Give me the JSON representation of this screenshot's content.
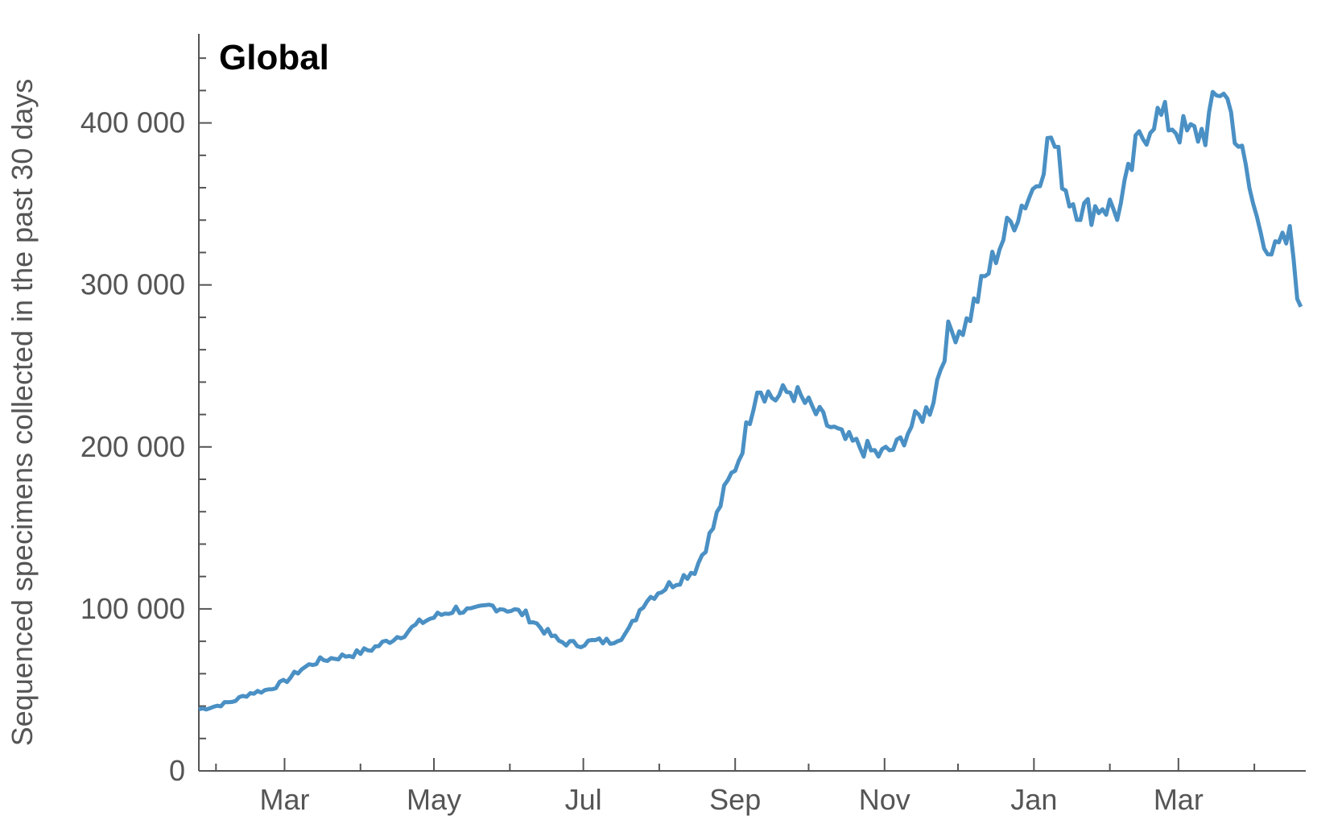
{
  "chart_data": {
    "type": "line",
    "title": "Global",
    "xlabel": "",
    "ylabel": "Sequenced specimens collected in the past 30 days",
    "ylim": [
      0,
      455000
    ],
    "xlim": [
      "2021-01-25",
      "2022-04-22"
    ],
    "x_ticks": [
      {
        "date": "2021-03-01",
        "label": "Mar"
      },
      {
        "date": "2021-05-01",
        "label": "May"
      },
      {
        "date": "2021-07-01",
        "label": "Jul"
      },
      {
        "date": "2021-09-01",
        "label": "Sep"
      },
      {
        "date": "2021-11-01",
        "label": "Nov"
      },
      {
        "date": "2022-01-01",
        "label": "Jan"
      },
      {
        "date": "2022-03-01",
        "label": "Mar"
      }
    ],
    "y_ticks": [
      {
        "value": 0,
        "label": "0"
      },
      {
        "value": 100000,
        "label": "100 000"
      },
      {
        "value": 200000,
        "label": "200 000"
      },
      {
        "value": 300000,
        "label": "300 000"
      },
      {
        "value": 400000,
        "label": "400 000"
      }
    ],
    "grid": false,
    "legend": "none",
    "colors": {
      "series": "#4a90c4",
      "axis": "#555555"
    },
    "series": [
      {
        "x": [
          "2021-01-25",
          "2021-02-01",
          "2021-02-08",
          "2021-02-15",
          "2021-02-22",
          "2021-03-01",
          "2021-03-08",
          "2021-03-15",
          "2021-03-22",
          "2021-03-29",
          "2021-04-05",
          "2021-04-12",
          "2021-04-19",
          "2021-04-26",
          "2021-05-03",
          "2021-05-10",
          "2021-05-17",
          "2021-05-24",
          "2021-05-31",
          "2021-06-07",
          "2021-06-14",
          "2021-06-21",
          "2021-06-28",
          "2021-07-05",
          "2021-07-12",
          "2021-07-19",
          "2021-07-26",
          "2021-08-02",
          "2021-08-09",
          "2021-08-16",
          "2021-08-23",
          "2021-08-27",
          "2021-09-03",
          "2021-09-10",
          "2021-09-17",
          "2021-09-24",
          "2021-10-01",
          "2021-10-08",
          "2021-10-15",
          "2021-10-22",
          "2021-10-30",
          "2021-11-06",
          "2021-11-13",
          "2021-11-20",
          "2021-11-27",
          "2021-12-04",
          "2021-12-11",
          "2021-12-18",
          "2021-12-25",
          "2022-01-01",
          "2022-01-08",
          "2022-01-15",
          "2022-01-22",
          "2022-01-29",
          "2022-02-05",
          "2022-02-12",
          "2022-02-19",
          "2022-02-26",
          "2022-03-05",
          "2022-03-12",
          "2022-03-19",
          "2022-03-26",
          "2022-04-02",
          "2022-04-09",
          "2022-04-16",
          "2022-04-20"
        ],
        "y": [
          38000,
          40000,
          43000,
          48000,
          50000,
          55000,
          63000,
          68000,
          70000,
          72000,
          75000,
          80000,
          85000,
          92000,
          96000,
          100000,
          98000,
          102000,
          100000,
          97000,
          88000,
          80000,
          78000,
          80000,
          80000,
          85000,
          105000,
          112000,
          118000,
          125000,
          150000,
          170000,
          195000,
          238000,
          230000,
          235000,
          225000,
          215000,
          205000,
          200000,
          195000,
          200000,
          215000,
          225000,
          270000,
          275000,
          300000,
          325000,
          345000,
          360000,
          392000,
          355000,
          345000,
          350000,
          345000,
          385000,
          405000,
          400000,
          392000,
          395000,
          425000,
          385000,
          340000,
          318000,
          330000,
          280000
        ]
      }
    ]
  }
}
